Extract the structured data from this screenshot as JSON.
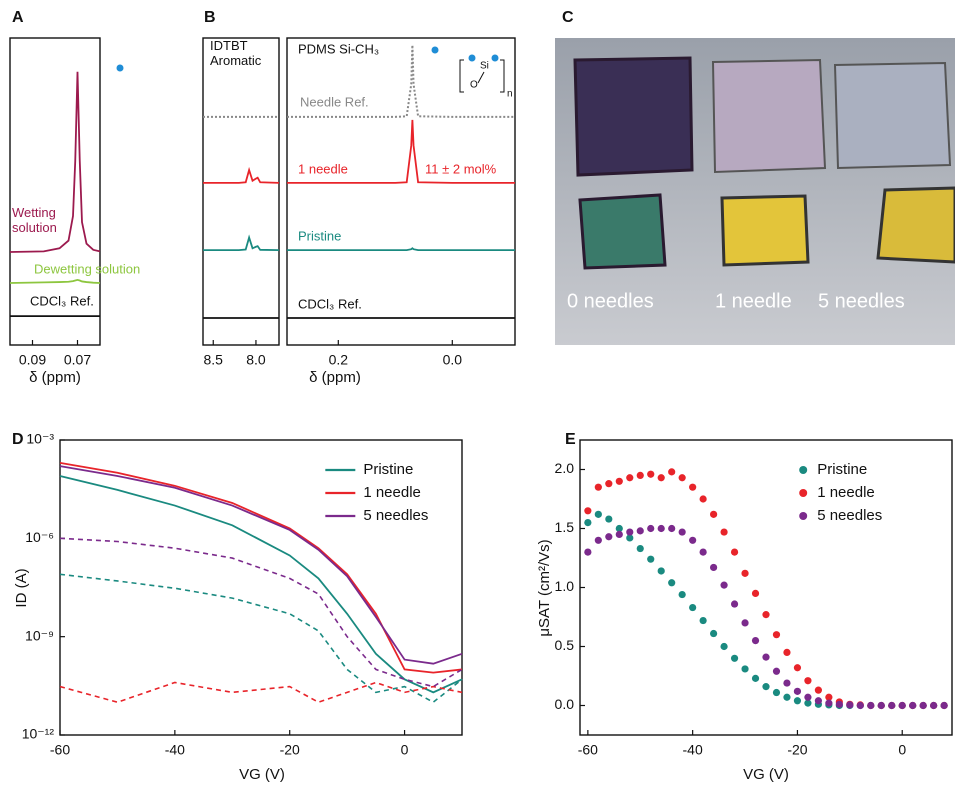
{
  "photo": {
    "panel": "C",
    "labels": [
      "0 needles",
      "1 needle",
      "5 needles"
    ]
  },
  "chart_data": [
    {
      "type": "line",
      "panel": "A",
      "xlabel": "δ (ppm)",
      "xlim": [
        0.1,
        0.06
      ],
      "xticks": [
        0.09,
        0.07
      ],
      "ylim": [
        0,
        10
      ],
      "x": [
        0.1,
        0.085,
        0.078,
        0.074,
        0.072,
        0.071,
        0.07,
        0.069,
        0.068,
        0.066,
        0.063,
        0.06
      ],
      "series": [
        {
          "name": "Wetting solution",
          "color": "#9c1a4e",
          "values": [
            3.03,
            3.05,
            3.15,
            3.4,
            4.2,
            6.0,
            8.9,
            6.0,
            4.0,
            3.3,
            3.1,
            3.05
          ]
        },
        {
          "name": "Dewetting solution",
          "color": "#8dc63f",
          "values": [
            2.02,
            2.04,
            2.05,
            2.06,
            2.08,
            2.1,
            2.12,
            2.1,
            2.07,
            2.05,
            2.03,
            2.02
          ]
        },
        {
          "name": "CDCl₃ Ref.",
          "color": "#111111",
          "values": [
            0.94,
            0.94,
            0.94,
            0.94,
            0.94,
            0.94,
            0.94,
            0.94,
            0.94,
            0.94,
            0.94,
            0.94
          ]
        }
      ]
    },
    {
      "type": "line",
      "panel": "B",
      "annotations": [
        "IDTBT Aromatic"
      ],
      "xlim": [
        8.62,
        7.73
      ],
      "xticks": [
        8.5,
        {
          "value": 8.0,
          "label": "8.0"
        }
      ],
      "ylim": [
        0,
        10
      ],
      "x": [
        8.62,
        8.2,
        8.12,
        8.08,
        8.04,
        8.0,
        7.98,
        7.95,
        7.73
      ],
      "series": [
        {
          "color": "#888888",
          "dash": true,
          "values": [
            7.43,
            7.43,
            7.43,
            7.43,
            7.43,
            7.43,
            7.43,
            7.43,
            7.43
          ]
        },
        {
          "color": "#e8242a",
          "values": [
            5.28,
            5.28,
            5.3,
            5.7,
            5.35,
            5.42,
            5.45,
            5.3,
            5.28
          ]
        },
        {
          "color": "#1a8a80",
          "values": [
            3.09,
            3.09,
            3.11,
            3.5,
            3.15,
            3.2,
            3.22,
            3.1,
            3.09
          ]
        },
        {
          "color": "#111111",
          "values": [
            0.88,
            0.88,
            0.88,
            0.88,
            0.88,
            0.88,
            0.88,
            0.88,
            0.88
          ]
        }
      ]
    },
    {
      "type": "line",
      "xlabel": "δ (ppm)",
      "annotations": [
        "PDMS Si-CH₃",
        "11 ± 2 mol%"
      ],
      "structure_labels": [
        "O",
        "Si",
        "n"
      ],
      "xlim": [
        0.29,
        -0.11
      ],
      "xticks": [
        0.2,
        {
          "value": 0.0,
          "label": "0.0"
        }
      ],
      "ylim": [
        0,
        10
      ],
      "x": [
        0.29,
        0.1,
        0.08,
        0.072,
        0.07,
        0.068,
        0.06,
        0.0,
        -0.11
      ],
      "series": [
        {
          "name": "Needle Ref.",
          "color": "#888888",
          "dash": true,
          "values": [
            7.43,
            7.43,
            7.45,
            8.5,
            9.77,
            8.5,
            7.45,
            7.43,
            7.43
          ]
        },
        {
          "name": "1 needle",
          "color": "#e8242a",
          "values": [
            5.28,
            5.28,
            5.3,
            6.5,
            7.33,
            6.5,
            5.3,
            5.28,
            5.28
          ]
        },
        {
          "name": "Pristine",
          "color": "#1a8a80",
          "values": [
            3.09,
            3.09,
            3.09,
            3.12,
            3.15,
            3.12,
            3.09,
            3.09,
            3.09
          ]
        },
        {
          "name": "CDCl₃ Ref.",
          "color": "#111111",
          "values": [
            0.88,
            0.88,
            0.88,
            0.88,
            0.88,
            0.88,
            0.88,
            0.88,
            0.88
          ]
        }
      ]
    },
    {
      "type": "line",
      "panel": "D",
      "xlabel": "VG (V)",
      "ylabel": "ID (A)",
      "ylog": true,
      "legend": "upper right",
      "xlim": [
        -60,
        10
      ],
      "xticks": [
        -60,
        -40,
        -20,
        0
      ],
      "ylim": [
        1e-12,
        0.001
      ],
      "yticks": [
        {
          "value": 1e-12,
          "label": "10⁻¹²"
        },
        {
          "value": 1e-09,
          "label": "10⁻⁹"
        },
        {
          "value": 1e-06,
          "label": "10⁻⁶"
        },
        {
          "value": 0.001,
          "label": "10⁻³"
        }
      ],
      "x": [
        -60,
        -50,
        -40,
        -30,
        -20,
        -15,
        -10,
        -5,
        0,
        5,
        10
      ],
      "series": [
        {
          "name": "Pristine",
          "color": "#1a8a80",
          "values": [
            8e-05,
            3e-05,
            1e-05,
            2.5e-06,
            3e-07,
            6e-08,
            5e-09,
            3e-10,
            5e-11,
            2e-11,
            5e-11
          ],
          "values_dashed": [
            8e-08,
            5e-08,
            3e-08,
            1.5e-08,
            5e-09,
            1.5e-09,
            1e-10,
            2e-11,
            3e-11,
            1e-11,
            5e-11
          ]
        },
        {
          "name": "1 needle",
          "color": "#e8242a",
          "values": [
            0.0002,
            0.0001,
            4e-05,
            1.2e-05,
            2e-06,
            5e-07,
            8e-08,
            5e-09,
            1e-10,
            8e-11,
            1e-10
          ],
          "values_dashed": [
            3e-11,
            1e-11,
            4e-11,
            2e-11,
            3e-11,
            1e-11,
            2e-11,
            4e-11,
            2e-11,
            3e-11,
            2e-11
          ]
        },
        {
          "name": "5 needles",
          "color": "#7b2a8c",
          "values": [
            0.00016,
            8e-05,
            3.5e-05,
            1e-05,
            1.8e-06,
            4.5e-07,
            7e-08,
            4e-09,
            2e-10,
            1.5e-10,
            3e-10
          ],
          "values_dashed": [
            1e-06,
            8e-07,
            5e-07,
            2.5e-07,
            6e-08,
            2e-08,
            1e-09,
            1e-10,
            5e-11,
            3e-11,
            1e-10
          ]
        }
      ]
    },
    {
      "type": "scatter",
      "panel": "E",
      "xlabel": "VG (V)",
      "ylabel": "μSAT (cm²/Vs)",
      "legend": "upper right",
      "xlim": [
        -61.5,
        9.5
      ],
      "xticks": [
        -60,
        -40,
        -20,
        0
      ],
      "ylim": [
        -0.25,
        2.25
      ],
      "yticks": [
        {
          "value": 0,
          "label": "0.0"
        },
        0.5,
        {
          "value": 1,
          "label": "1.0"
        },
        1.5,
        {
          "value": 2,
          "label": "2.0"
        }
      ],
      "x": [
        -60,
        -58,
        -56,
        -54,
        -52,
        -50,
        -48,
        -46,
        -44,
        -42,
        -40,
        -38,
        -36,
        -34,
        -32,
        -30,
        -28,
        -26,
        -24,
        -22,
        -20,
        -18,
        -16,
        -14,
        -12,
        -10,
        -8,
        -6,
        -4,
        -2,
        0,
        2,
        4,
        6,
        8
      ],
      "series": [
        {
          "name": "Pristine",
          "color": "#1a8a80",
          "values": [
            1.55,
            1.62,
            1.58,
            1.5,
            1.42,
            1.33,
            1.24,
            1.14,
            1.04,
            0.94,
            0.83,
            0.72,
            0.61,
            0.5,
            0.4,
            0.31,
            0.23,
            0.16,
            0.11,
            0.07,
            0.04,
            0.02,
            0.01,
            0.005,
            0,
            0,
            0,
            0,
            0,
            0,
            0,
            0,
            0,
            0,
            0
          ]
        },
        {
          "name": "1 needle",
          "color": "#e8242a",
          "values": [
            1.65,
            1.85,
            1.88,
            1.9,
            1.93,
            1.95,
            1.96,
            1.93,
            1.98,
            1.93,
            1.85,
            1.75,
            1.62,
            1.47,
            1.3,
            1.12,
            0.95,
            0.77,
            0.6,
            0.45,
            0.32,
            0.21,
            0.13,
            0.07,
            0.03,
            0.01,
            0.005,
            0,
            0,
            0,
            0,
            0,
            0,
            0,
            0
          ]
        },
        {
          "name": "5 needles",
          "color": "#7b2a8c",
          "values": [
            1.3,
            1.4,
            1.43,
            1.45,
            1.47,
            1.48,
            1.5,
            1.5,
            1.5,
            1.47,
            1.4,
            1.3,
            1.17,
            1.02,
            0.86,
            0.7,
            0.55,
            0.41,
            0.29,
            0.19,
            0.12,
            0.07,
            0.04,
            0.02,
            0.01,
            0.005,
            0,
            0,
            0,
            0,
            0,
            0,
            0,
            0,
            0
          ]
        }
      ]
    }
  ]
}
